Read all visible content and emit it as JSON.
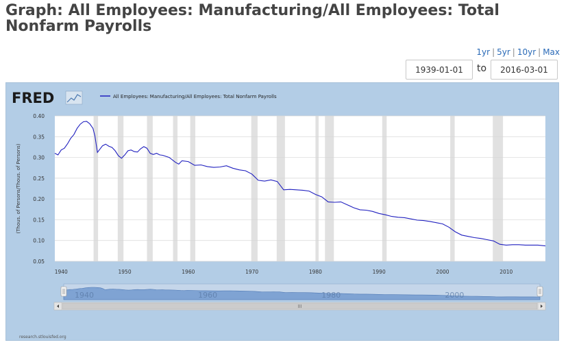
{
  "page": {
    "title": "Graph: All Employees: Manufacturing/All Employees: Total Nonfarm Payrolls"
  },
  "range_links": [
    "1yr",
    "5yr",
    "10yr",
    "Max"
  ],
  "date_range": {
    "from": "1939-01-01",
    "to_label": "to",
    "to": "2016-03-01"
  },
  "brand": {
    "logo_text": "FRED",
    "credit": "research.stlouisfed.org"
  },
  "colors": {
    "series": "#1f1fbf",
    "panel_bg": "#b3cde6",
    "plot_bg": "#ffffff",
    "recession": "#e1e1e1",
    "navigator_fill": "#7fa3d3"
  },
  "chart_data": {
    "type": "line",
    "title": "",
    "ylabel": "(Thous. of Persons/Thous. of Persons)",
    "xlabel": "",
    "xlim": [
      1939.0,
      2016.17
    ],
    "ylim": [
      0.05,
      0.4
    ],
    "yticks": [
      0.05,
      0.1,
      0.15,
      0.2,
      0.25,
      0.3,
      0.35,
      0.4
    ],
    "ytick_labels": [
      "0.05",
      "0.10",
      "0.15",
      "0.20",
      "0.25",
      "0.30",
      "0.35",
      "0.40"
    ],
    "xticks": [
      1940,
      1950,
      1960,
      1970,
      1980,
      1990,
      2000,
      2010
    ],
    "xtick_labels": [
      "1940",
      "1950",
      "1960",
      "1970",
      "1980",
      "1990",
      "2000",
      "2010"
    ],
    "grid": true,
    "legend_position": "top-left",
    "navigator_labels": [
      "1940",
      "1960",
      "1980",
      "2000"
    ],
    "recessions": [
      [
        1945.1,
        1945.8
      ],
      [
        1948.9,
        1949.8
      ],
      [
        1953.5,
        1954.4
      ],
      [
        1957.6,
        1958.3
      ],
      [
        1960.3,
        1961.1
      ],
      [
        1969.9,
        1970.9
      ],
      [
        1973.9,
        1975.2
      ],
      [
        1980.0,
        1980.5
      ],
      [
        1981.5,
        1982.9
      ],
      [
        1990.5,
        1991.2
      ],
      [
        2001.2,
        2001.9
      ],
      [
        2007.9,
        2009.5
      ]
    ],
    "series": [
      {
        "name": "All Employees: Manufacturing/All Employees: Total Nonfarm Payrolls",
        "x": [
          1939.0,
          1939.5,
          1940.0,
          1940.5,
          1941.0,
          1941.5,
          1942.0,
          1942.5,
          1943.0,
          1943.5,
          1944.0,
          1944.5,
          1945.0,
          1945.3,
          1945.7,
          1946.0,
          1946.5,
          1947.0,
          1947.5,
          1948.0,
          1948.5,
          1949.0,
          1949.5,
          1950.0,
          1950.5,
          1951.0,
          1951.5,
          1952.0,
          1952.5,
          1953.0,
          1953.5,
          1954.0,
          1954.5,
          1955.0,
          1955.5,
          1956.0,
          1957.0,
          1958.0,
          1958.5,
          1959.0,
          1960.0,
          1961.0,
          1962.0,
          1963.0,
          1964.0,
          1965.0,
          1966.0,
          1967.0,
          1968.0,
          1969.0,
          1970.0,
          1971.0,
          1972.0,
          1973.0,
          1974.0,
          1975.0,
          1976.0,
          1977.0,
          1978.0,
          1979.0,
          1980.0,
          1981.0,
          1982.0,
          1983.0,
          1984.0,
          1985.0,
          1986.0,
          1987.0,
          1988.0,
          1989.0,
          1990.0,
          1991.0,
          1992.0,
          1993.0,
          1994.0,
          1995.0,
          1996.0,
          1997.0,
          1998.0,
          1999.0,
          2000.0,
          2001.0,
          2002.0,
          2003.0,
          2004.0,
          2005.0,
          2006.0,
          2007.0,
          2008.0,
          2009.0,
          2010.0,
          2011.0,
          2012.0,
          2013.0,
          2014.0,
          2015.0,
          2016.17
        ],
        "values": [
          0.31,
          0.306,
          0.318,
          0.322,
          0.333,
          0.346,
          0.355,
          0.37,
          0.38,
          0.386,
          0.387,
          0.381,
          0.37,
          0.352,
          0.312,
          0.318,
          0.328,
          0.332,
          0.327,
          0.324,
          0.316,
          0.304,
          0.298,
          0.306,
          0.316,
          0.318,
          0.314,
          0.313,
          0.321,
          0.326,
          0.322,
          0.31,
          0.307,
          0.31,
          0.306,
          0.305,
          0.3,
          0.288,
          0.284,
          0.292,
          0.29,
          0.281,
          0.282,
          0.278,
          0.276,
          0.277,
          0.28,
          0.274,
          0.27,
          0.268,
          0.26,
          0.245,
          0.243,
          0.246,
          0.242,
          0.222,
          0.223,
          0.222,
          0.221,
          0.219,
          0.211,
          0.205,
          0.193,
          0.192,
          0.193,
          0.186,
          0.179,
          0.174,
          0.173,
          0.17,
          0.165,
          0.162,
          0.158,
          0.156,
          0.155,
          0.152,
          0.149,
          0.148,
          0.146,
          0.143,
          0.14,
          0.132,
          0.121,
          0.113,
          0.11,
          0.107,
          0.105,
          0.102,
          0.099,
          0.091,
          0.089,
          0.09,
          0.09,
          0.089,
          0.089,
          0.089,
          0.087
        ]
      }
    ]
  }
}
